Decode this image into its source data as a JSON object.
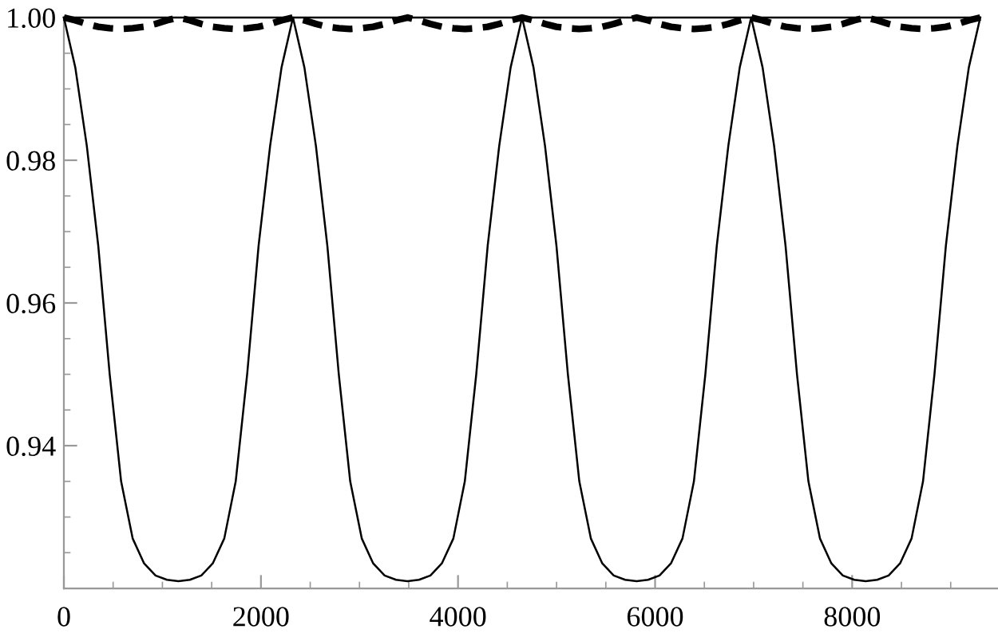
{
  "chart_data": {
    "type": "line",
    "xlim": [
      0,
      9480
    ],
    "ylim": [
      0.92,
      1.0
    ],
    "xticks": [
      0,
      2000,
      4000,
      6000,
      8000
    ],
    "yticks": [
      0.94,
      0.96,
      0.98,
      {
        "value": 1.0,
        "label": "1.00"
      }
    ],
    "marker": "none",
    "series": [
      {
        "color": "#000000",
        "line_style": "solid",
        "x": [
          0,
          9300
        ],
        "values": [
          1.0,
          1.0
        ]
      },
      {
        "color": "#000000",
        "line_style": "solid",
        "x": [
          0,
          116,
          233,
          349,
          465,
          581,
          698,
          814,
          930,
          1046,
          1163,
          1279,
          1395,
          1511,
          1628,
          1744,
          1860,
          1976,
          2093,
          2209,
          2325,
          2441,
          2558,
          2674,
          2790,
          2906,
          3023,
          3139,
          3255,
          3371,
          3488,
          3604,
          3720,
          3836,
          3953,
          4069,
          4185,
          4301,
          4418,
          4534,
          4650,
          4766,
          4883,
          4999,
          5115,
          5231,
          5348,
          5464,
          5580,
          5696,
          5813,
          5929,
          6045,
          6161,
          6278,
          6394,
          6510,
          6626,
          6743,
          6859,
          6975,
          7091,
          7208,
          7324,
          7440,
          7556,
          7673,
          7789,
          7905,
          8021,
          8138,
          8254,
          8370,
          8486,
          8603,
          8719,
          8835,
          8951,
          9068,
          9184,
          9300
        ],
        "values": [
          1.0,
          0.993,
          0.982,
          0.968,
          0.95,
          0.935,
          0.927,
          0.9235,
          0.9218,
          0.9212,
          0.921,
          0.9212,
          0.9218,
          0.9235,
          0.927,
          0.935,
          0.95,
          0.968,
          0.982,
          0.993,
          1.0,
          0.993,
          0.982,
          0.968,
          0.95,
          0.935,
          0.927,
          0.9235,
          0.9218,
          0.9212,
          0.921,
          0.9212,
          0.9218,
          0.9235,
          0.927,
          0.935,
          0.95,
          0.968,
          0.982,
          0.993,
          1.0,
          0.993,
          0.982,
          0.968,
          0.95,
          0.935,
          0.927,
          0.9235,
          0.9218,
          0.9212,
          0.921,
          0.9212,
          0.9218,
          0.9235,
          0.927,
          0.935,
          0.95,
          0.968,
          0.982,
          0.993,
          1.0,
          0.993,
          0.982,
          0.968,
          0.95,
          0.935,
          0.927,
          0.9235,
          0.9218,
          0.9212,
          0.921,
          0.9212,
          0.9218,
          0.9235,
          0.927,
          0.935,
          0.95,
          0.968,
          0.982,
          0.993,
          1.0
        ]
      },
      {
        "color": "#000000",
        "line_style": "dashed",
        "x": [
          0,
          116,
          233,
          349,
          465,
          581,
          698,
          814,
          930,
          1046,
          1163,
          1279,
          1395,
          1511,
          1628,
          1744,
          1860,
          1976,
          2093,
          2209,
          2325,
          2441,
          2558,
          2674,
          2790,
          2906,
          3023,
          3139,
          3255,
          3371,
          3488,
          3604,
          3720,
          3836,
          3953,
          4069,
          4185,
          4301,
          4418,
          4534,
          4650,
          4766,
          4883,
          4999,
          5115,
          5231,
          5348,
          5464,
          5580,
          5696,
          5813,
          5929,
          6045,
          6161,
          6278,
          6394,
          6510,
          6626,
          6743,
          6859,
          6975,
          7091,
          7208,
          7324,
          7440,
          7556,
          7673,
          7789,
          7905,
          8021,
          8138,
          8254,
          8370,
          8486,
          8603,
          8719,
          8835,
          8951,
          9068,
          9184,
          9300
        ],
        "values": [
          1.0,
          0.9996,
          0.9991,
          0.9987,
          0.9985,
          0.9984,
          0.9985,
          0.9987,
          0.9991,
          0.9996,
          1.0,
          0.9996,
          0.9991,
          0.9987,
          0.9985,
          0.9984,
          0.9985,
          0.9987,
          0.9991,
          0.9996,
          1.0,
          0.9996,
          0.9991,
          0.9987,
          0.9985,
          0.9984,
          0.9985,
          0.9987,
          0.9991,
          0.9996,
          1.0,
          0.9996,
          0.9991,
          0.9987,
          0.9985,
          0.9984,
          0.9985,
          0.9987,
          0.9991,
          0.9996,
          1.0,
          0.9996,
          0.9991,
          0.9987,
          0.9985,
          0.9984,
          0.9985,
          0.9987,
          0.9991,
          0.9996,
          1.0,
          0.9996,
          0.9991,
          0.9987,
          0.9985,
          0.9984,
          0.9985,
          0.9987,
          0.9991,
          0.9996,
          1.0,
          0.9996,
          0.9991,
          0.9987,
          0.9985,
          0.9984,
          0.9985,
          0.9987,
          0.9991,
          0.9996,
          1.0,
          0.9996,
          0.9991,
          0.9987,
          0.9985,
          0.9984,
          0.9985,
          0.9987,
          0.9991,
          0.9996,
          1.0
        ]
      }
    ]
  }
}
